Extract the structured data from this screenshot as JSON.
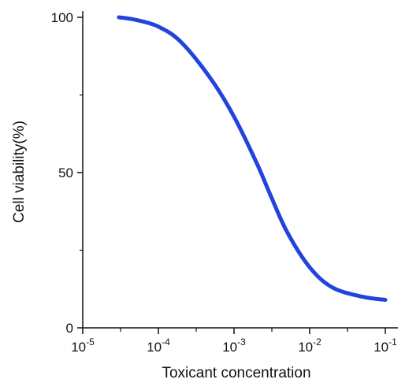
{
  "chart_data": {
    "type": "line",
    "xlabel": "Toxicant concentration",
    "ylabel": "Cell viability(%)",
    "xscale": "log",
    "xlim": [
      1e-05,
      0.1
    ],
    "ylim": [
      0,
      100
    ],
    "grid": false,
    "legend": "none",
    "x_ticks": [
      {
        "base": "10",
        "exp": "-5",
        "value": 1e-05
      },
      {
        "base": "10",
        "exp": "-4",
        "value": 0.0001
      },
      {
        "base": "10",
        "exp": "-3",
        "value": 0.001
      },
      {
        "base": "10",
        "exp": "-2",
        "value": 0.01
      },
      {
        "base": "10",
        "exp": "-1",
        "value": 0.1
      }
    ],
    "y_ticks": [
      {
        "label": "0",
        "value": 0
      },
      {
        "label": "50",
        "value": 50
      },
      {
        "label": "100",
        "value": 100
      }
    ],
    "series": [
      {
        "color": "#2244dd",
        "x": [
          3e-05,
          5e-05,
          0.0001,
          0.0002,
          0.0005,
          0.001,
          0.002,
          0.003,
          0.005,
          0.01,
          0.02,
          0.05,
          0.1
        ],
        "y": [
          100,
          99.2,
          97,
          92,
          80,
          68,
          53,
          43,
          31,
          19.5,
          13,
          10,
          9
        ]
      }
    ]
  }
}
